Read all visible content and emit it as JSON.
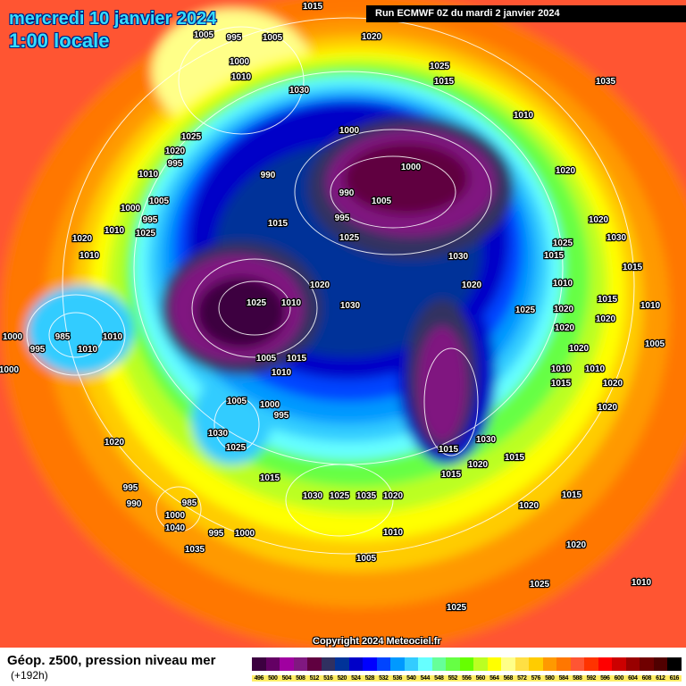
{
  "header": {
    "date": "mercredi 10 janvier 2024",
    "time": "1:00 locale",
    "run": "Run ECMWF 0Z du mardi 2 janvier 2024"
  },
  "copyright": "Copyright 2024 Meteociel.fr",
  "footer": {
    "title": "Géop. z500, pression niveau mer",
    "lead": "(+192h)"
  },
  "legend": {
    "labels": [
      "496",
      "500",
      "504",
      "508",
      "512",
      "516",
      "520",
      "524",
      "528",
      "532",
      "536",
      "540",
      "544",
      "548",
      "552",
      "556",
      "560",
      "564",
      "568",
      "572",
      "576",
      "580",
      "584",
      "588",
      "592",
      "596",
      "600",
      "604",
      "608",
      "612",
      "616"
    ],
    "colors": [
      "#3c0040",
      "#640064",
      "#a000a0",
      "#801880",
      "#600040",
      "#303060",
      "#003399",
      "#0000c8",
      "#0000ff",
      "#0044ff",
      "#0099ff",
      "#33ccff",
      "#66ffff",
      "#66ff99",
      "#66ff44",
      "#66ff00",
      "#bbff22",
      "#ffff00",
      "#ffff88",
      "#ffe044",
      "#ffcc00",
      "#ff9900",
      "#ff7700",
      "#ff5533",
      "#ff3300",
      "#ff0000",
      "#cc0000",
      "#990000",
      "#700000",
      "#500000",
      "#000000"
    ]
  },
  "isobar_labels": [
    "1015",
    "1005",
    "995",
    "1005",
    "1000",
    "1010",
    "1020",
    "1025",
    "1015",
    "1035",
    "1030",
    "1025",
    "1020",
    "995",
    "1010",
    "1005",
    "1000",
    "995",
    "1025",
    "1020",
    "1010",
    "1010",
    "1000",
    "990",
    "990",
    "1000",
    "995",
    "1005",
    "1015",
    "1025",
    "1030",
    "1020",
    "1010",
    "1015",
    "1025",
    "1020",
    "1030",
    "1025",
    "1010",
    "1010",
    "1025",
    "1020",
    "1015",
    "1020",
    "1020",
    "1030",
    "1020",
    "1015",
    "1020",
    "1010",
    "1005",
    "1000",
    "995",
    "985",
    "1010",
    "1010",
    "1000",
    "1005",
    "1015",
    "1010",
    "1000",
    "995",
    "1005",
    "1030",
    "1025",
    "1020",
    "995",
    "990",
    "985",
    "1000",
    "1040",
    "1035",
    "1030",
    "1025",
    "1035",
    "1020",
    "1010",
    "1005",
    "995",
    "1000",
    "1015",
    "1030",
    "1015",
    "1020",
    "1015",
    "1015",
    "1020",
    "1010",
    "1010",
    "1015",
    "1020",
    "1020",
    "1015",
    "1020",
    "1020",
    "1025",
    "1010",
    "1025"
  ]
}
